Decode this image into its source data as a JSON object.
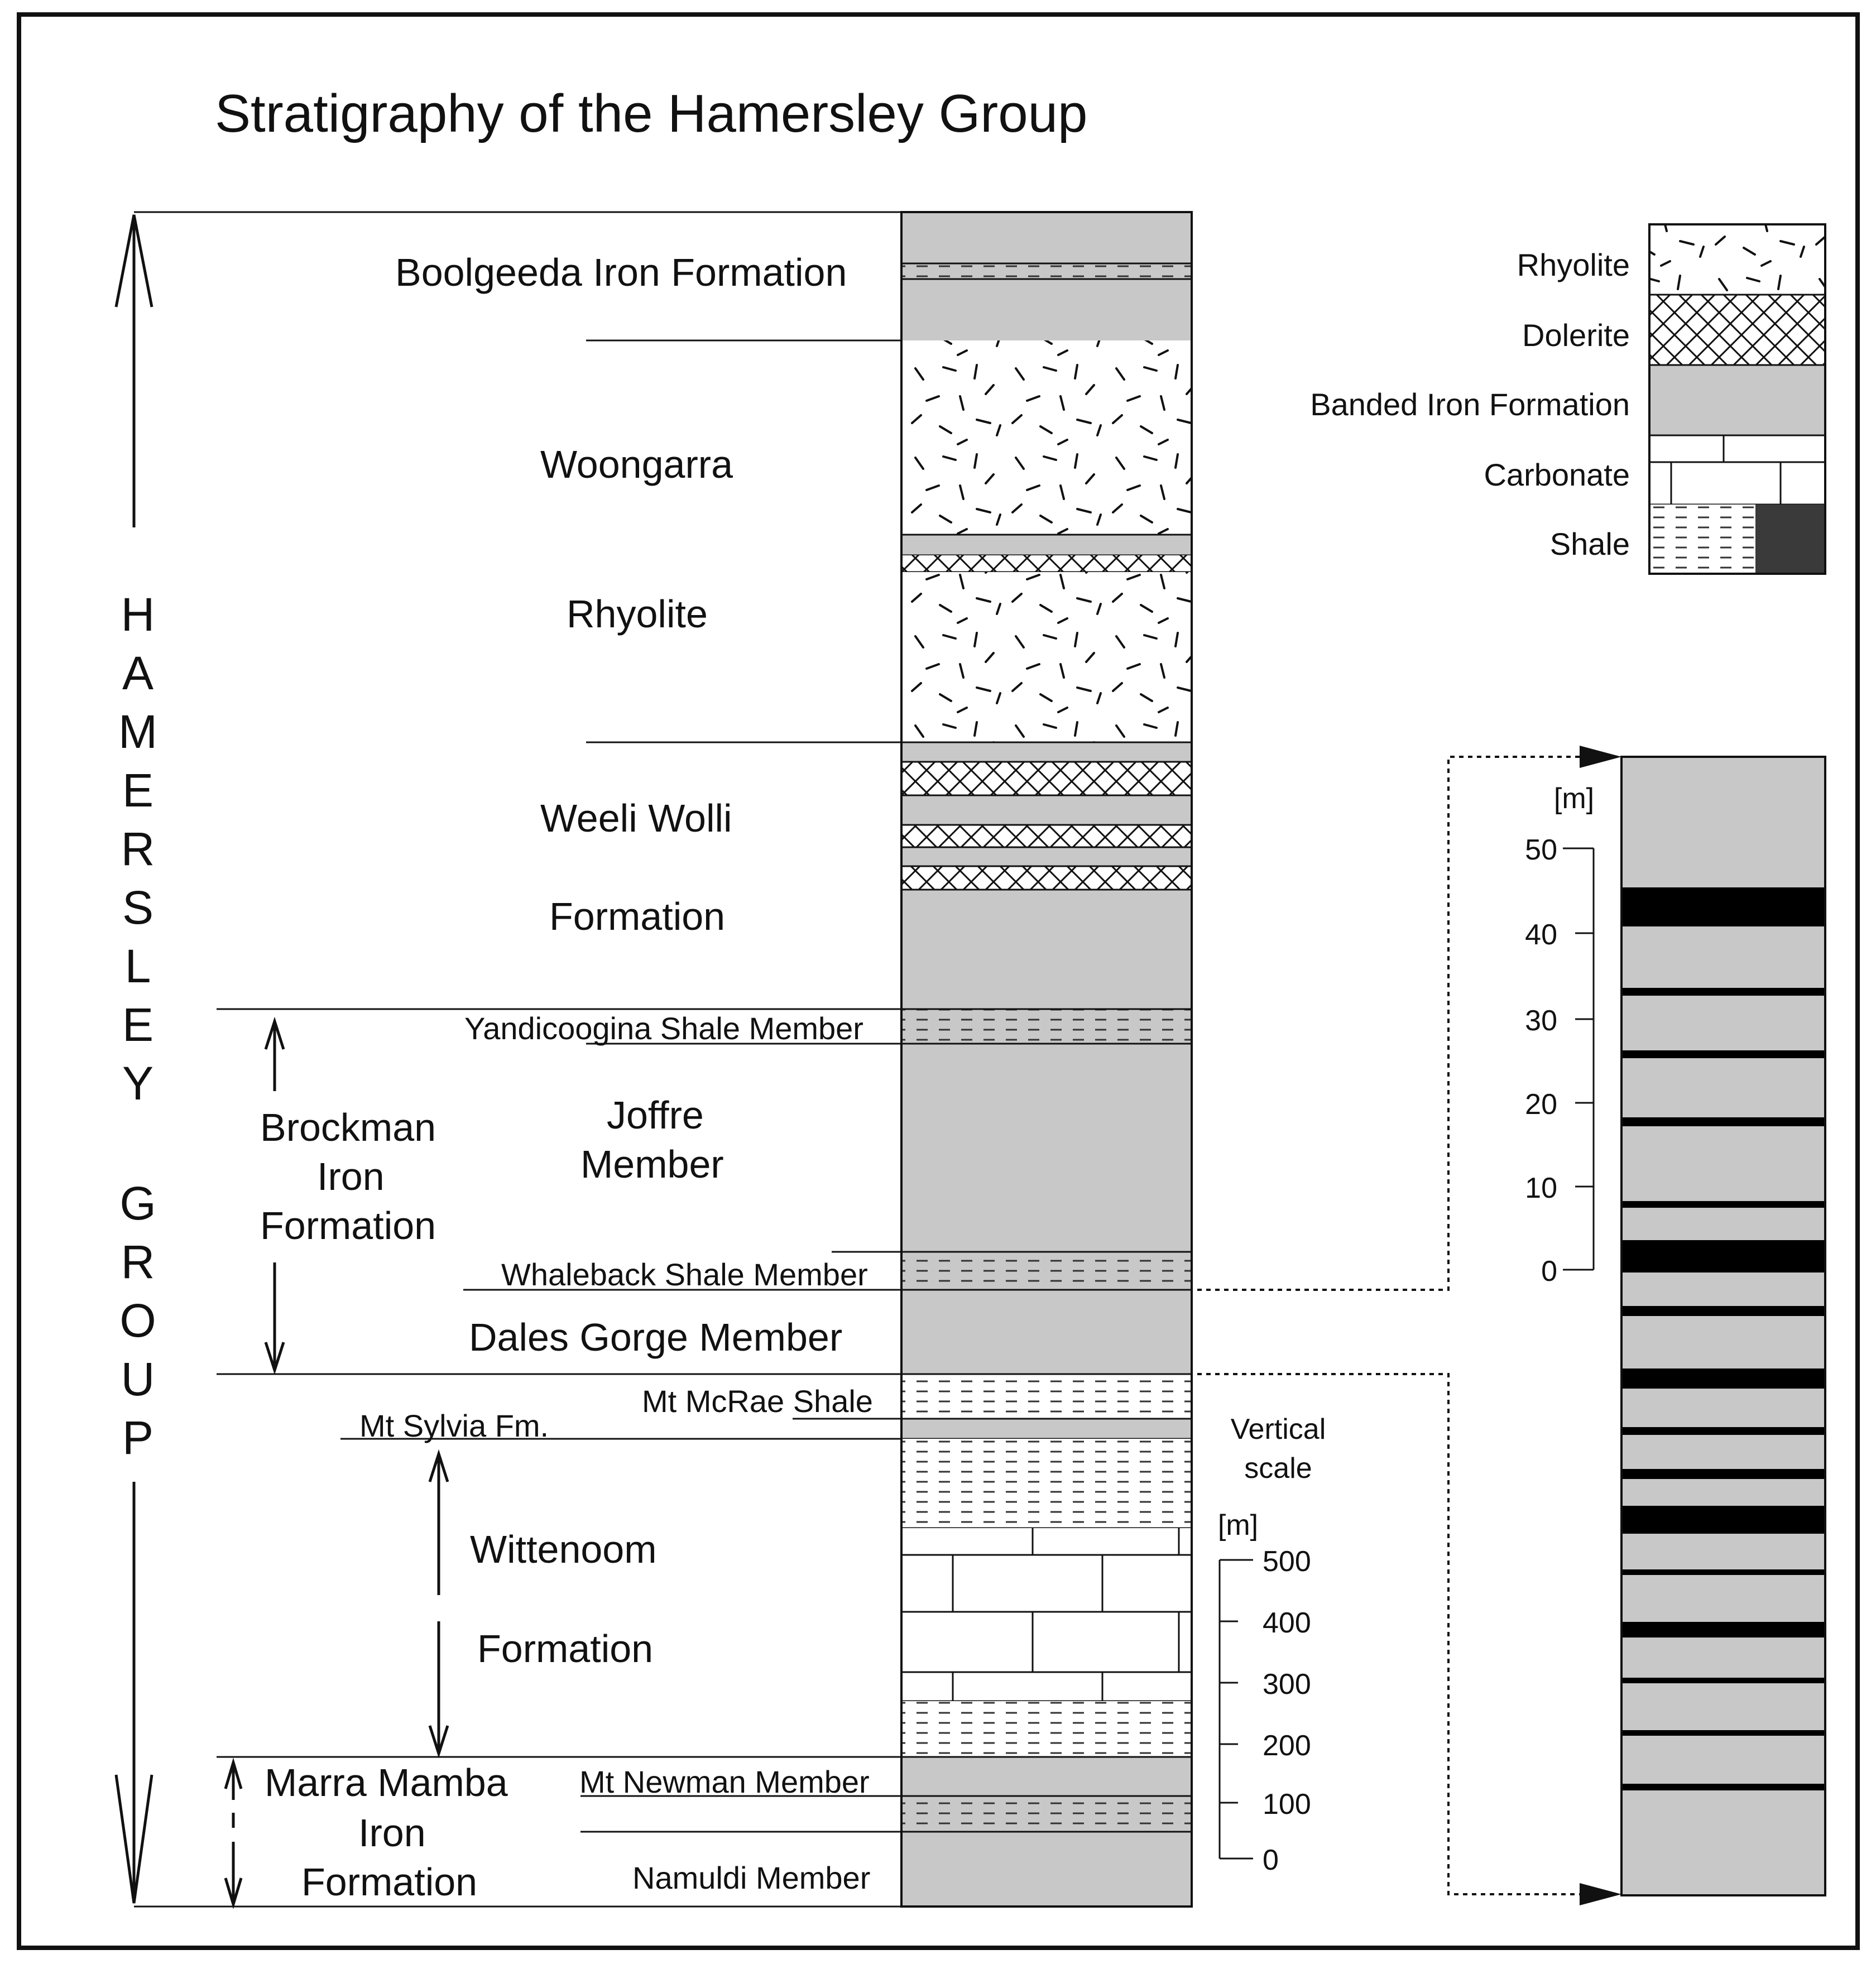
{
  "title": "Stratigraphy of the Hamersley Group",
  "group_label": [
    "H",
    "A",
    "M",
    "E",
    "R",
    "S",
    "L",
    "E",
    "Y",
    "",
    "G",
    "R",
    "O",
    "U",
    "P"
  ],
  "formations": {
    "boolgeeda": "Boolgeeda Iron Formation",
    "woongarra": "Woongarra",
    "rhyolite": "Rhyolite",
    "weeli_wolli_1": "Weeli Wolli",
    "weeli_wolli_2": "Formation",
    "brockman_1": "Brockman",
    "brockman_2": "Iron",
    "brockman_3": "Formation",
    "yandicoogina": "Yandicoogina Shale Member",
    "joffre_1": "Joffre",
    "joffre_2": "Member",
    "whaleback": "Whaleback Shale Member",
    "dales_gorge": "Dales Gorge Member",
    "mt_mcrae": "Mt McRae Shale",
    "mt_sylvia": "Mt Sylvia Fm.",
    "wittenoom_1": "Wittenoom",
    "wittenoom_2": "Formation",
    "marra_1": "Marra Mamba",
    "marra_2": "Iron",
    "marra_3": "Formation",
    "mt_newman": "Mt Newman Member",
    "namuldi": "Namuldi Member"
  },
  "legend": [
    {
      "label": "Rhyolite",
      "pattern": "rhyolite"
    },
    {
      "label": "Dolerite",
      "pattern": "dolerite"
    },
    {
      "label": "Banded Iron Formation",
      "pattern": "bif"
    },
    {
      "label": "Carbonate",
      "pattern": "carbonate"
    },
    {
      "label": "Shale",
      "pattern": "shale"
    }
  ],
  "vertical_scale": {
    "label_1": "Vertical",
    "label_2": "scale",
    "unit": "[m]",
    "ticks": [
      "500",
      "400",
      "300",
      "200",
      "100",
      "0"
    ]
  },
  "detail_scale": {
    "unit": "[m]",
    "ticks": [
      "50",
      "40",
      "30",
      "20",
      "10",
      "0"
    ]
  },
  "colors": {
    "bif": "#c8c8c8",
    "shale_dark": "#3a3a3a",
    "detail_band": "#000000"
  }
}
